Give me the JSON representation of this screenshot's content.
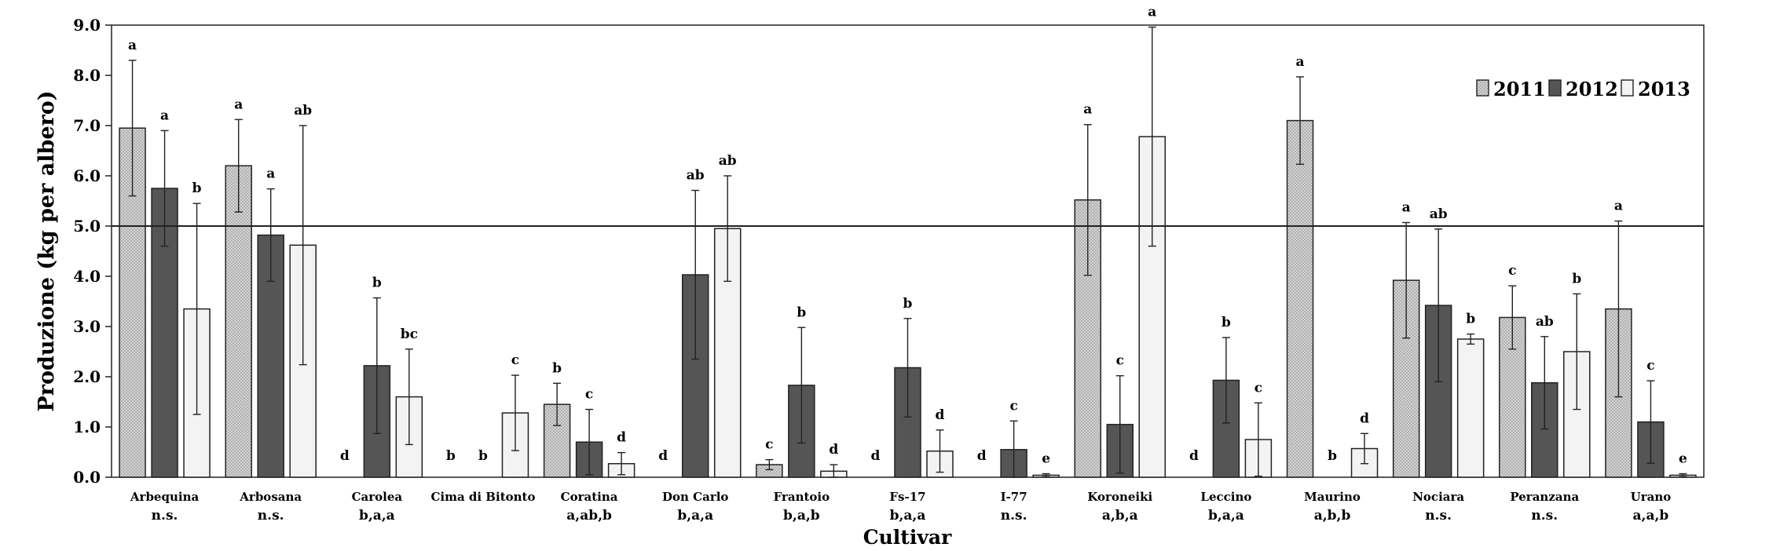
{
  "chart_data": {
    "type": "bar",
    "title": "",
    "ylabel": "Produzione (kg per albero)",
    "xlabel": "Cultivar",
    "ylim": [
      0,
      9.0
    ],
    "yticks": [
      "0.0",
      "1.0",
      "2.0",
      "3.0",
      "4.0",
      "5.0",
      "6.0",
      "7.0",
      "8.0",
      "9.0"
    ],
    "reference_line": 5.0,
    "legend_position": "top-right",
    "grid": false,
    "categories": [
      "Arbequina",
      "Arbosana",
      "Carolea",
      "Cima di Bitonto",
      "Coratina",
      "Don Carlo",
      "Frantoio",
      "Fs-17",
      "I-77",
      "Koroneiki",
      "Leccino",
      "Maurino",
      "Nociara",
      "Peranzana",
      "Urano"
    ],
    "year_comparison": [
      "n.s.",
      "n.s.",
      "b,a,a",
      "",
      "a,ab,b",
      "b,a,a",
      "b,a,b",
      "b,a,a",
      "n.s.",
      "a,b,a",
      "b,a,a",
      "a,b,b",
      "n.s.",
      "n.s.",
      "a,a,b"
    ],
    "series": [
      {
        "name": "2011",
        "color": "#c8c8c8",
        "values": [
          6.95,
          6.2,
          0,
          0,
          1.45,
          0,
          0.25,
          0,
          0,
          5.52,
          0,
          7.1,
          3.92,
          3.18,
          3.35
        ],
        "errors": [
          1.35,
          0.92,
          0,
          0,
          0.42,
          0,
          0.1,
          0,
          0,
          1.5,
          0,
          0.87,
          1.15,
          0.63,
          1.75
        ],
        "letters": [
          "a",
          "a",
          "d",
          "b",
          "b",
          "d",
          "c",
          "d",
          "d",
          "a",
          "d",
          "a",
          "a",
          "c",
          "a"
        ]
      },
      {
        "name": "2012",
        "color": "#555555",
        "values": [
          5.75,
          4.82,
          2.22,
          0,
          0.7,
          4.03,
          1.83,
          2.18,
          0.55,
          1.05,
          1.93,
          0,
          3.42,
          1.88,
          1.1
        ],
        "errors": [
          1.15,
          0.92,
          1.35,
          0,
          0.65,
          1.68,
          1.15,
          0.98,
          0.57,
          0.97,
          0.85,
          0,
          1.52,
          0.92,
          0.82
        ],
        "letters": [
          "a",
          "a",
          "b",
          "b",
          "c",
          "ab",
          "b",
          "b",
          "c",
          "c",
          "b",
          "b",
          "ab",
          "ab",
          "c"
        ]
      },
      {
        "name": "2013",
        "color": "#f3f3f3",
        "values": [
          3.35,
          4.62,
          1.6,
          1.28,
          0.27,
          4.95,
          0.12,
          0.52,
          0.04,
          6.78,
          0.75,
          0.57,
          2.75,
          2.5,
          0.04
        ],
        "errors": [
          2.1,
          2.38,
          0.95,
          0.75,
          0.22,
          1.05,
          0.13,
          0.42,
          0.03,
          2.18,
          0.73,
          0.3,
          0.1,
          1.15,
          0.03
        ],
        "letters": [
          "b",
          "ab",
          "bc",
          "c",
          "d",
          "ab",
          "d",
          "d",
          "e",
          "a",
          "c",
          "d",
          "b",
          "b",
          "e"
        ]
      }
    ]
  }
}
